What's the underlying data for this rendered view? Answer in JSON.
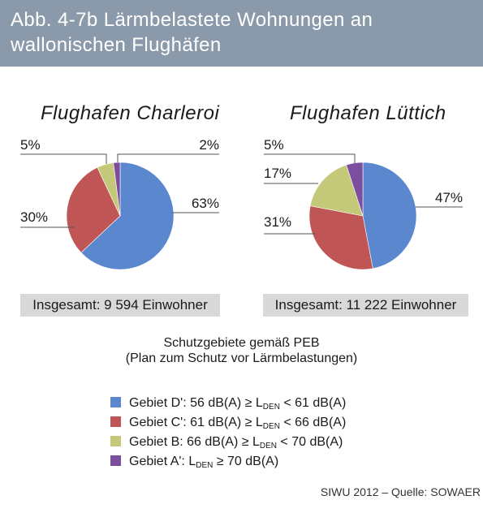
{
  "title": {
    "line1": "Abb. 4-7b Lärmbelastete Wohnungen an",
    "line2": "wallonischen Flughäfen"
  },
  "chart_data": [
    {
      "type": "pie",
      "title": "Flughafen Charleroi",
      "slices": [
        {
          "label": "D'",
          "value": 63,
          "text": "63%",
          "color": "#5b87cf"
        },
        {
          "label": "C'",
          "value": 30,
          "text": "30%",
          "color": "#c05555"
        },
        {
          "label": "B",
          "value": 5,
          "text": "5%",
          "color": "#c4c97a"
        },
        {
          "label": "A'",
          "value": 2,
          "text": "2%",
          "color": "#7b4f9e"
        }
      ],
      "total": "Insgesamt: 9 594 Einwohner"
    },
    {
      "type": "pie",
      "title": "Flughafen Lüttich",
      "slices": [
        {
          "label": "D'",
          "value": 47,
          "text": "47%",
          "color": "#5b87cf"
        },
        {
          "label": "C'",
          "value": 31,
          "text": "31%",
          "color": "#c05555"
        },
        {
          "label": "B",
          "value": 17,
          "text": "17%",
          "color": "#c4c97a"
        },
        {
          "label": "A'",
          "value": 5,
          "text": "5%",
          "color": "#7b4f9e"
        }
      ],
      "total": "Insgesamt: 11 222 Einwohner"
    }
  ],
  "legend": {
    "title_line1": "Schutzgebiete gemäß PEB",
    "title_line2": "(Plan zum Schutz vor Lärmbelastungen)",
    "items": [
      {
        "color": "#5b87cf",
        "prefix": "Gebiet  D': 56 dB(A) ≥ L",
        "sub": "DEN",
        "suffix": " < 61 dB(A)"
      },
      {
        "color": "#c05555",
        "prefix": "Gebiet  C': 61 dB(A) ≥ L",
        "sub": "DEN",
        "suffix": "  < 66 dB(A)"
      },
      {
        "color": "#c4c97a",
        "prefix": "Gebiet  B: 66 dB(A) ≥ L",
        "sub": "DEN",
        "suffix": "  < 70 dB(A)"
      },
      {
        "color": "#7b4f9e",
        "prefix": "Gebiet  A': L",
        "sub": "DEN",
        "suffix": "  ≥ 70 dB(A)"
      }
    ]
  },
  "source": "SIWU 2012 – Quelle: SOWAER"
}
